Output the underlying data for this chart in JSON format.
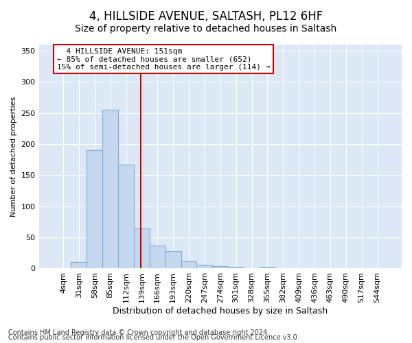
{
  "title": "4, HILLSIDE AVENUE, SALTASH, PL12 6HF",
  "subtitle": "Size of property relative to detached houses in Saltash",
  "xlabel": "Distribution of detached houses by size in Saltash",
  "ylabel": "Number of detached properties",
  "categories": [
    "4sqm",
    "31sqm",
    "58sqm",
    "85sqm",
    "112sqm",
    "139sqm",
    "166sqm",
    "193sqm",
    "220sqm",
    "247sqm",
    "274sqm",
    "301sqm",
    "328sqm",
    "355sqm",
    "382sqm",
    "409sqm",
    "436sqm",
    "463sqm",
    "490sqm",
    "517sqm",
    "544sqm"
  ],
  "values": [
    1,
    10,
    190,
    255,
    167,
    65,
    37,
    28,
    11,
    6,
    4,
    3,
    0,
    3,
    0,
    0,
    1,
    0,
    0,
    0,
    1
  ],
  "bar_color": "#c5d8f0",
  "bar_edge_color": "#7bafd4",
  "vline_color": "#cc0000",
  "vline_pos": 5.44,
  "annotation_title": "4 HILLSIDE AVENUE: 151sqm",
  "annotation_line1": "← 85% of detached houses are smaller (652)",
  "annotation_line2": "15% of semi-detached houses are larger (114) →",
  "annotation_box_color": "#ffffff",
  "annotation_box_edge_color": "#cc0000",
  "ylim": [
    0,
    360
  ],
  "yticks": [
    0,
    50,
    100,
    150,
    200,
    250,
    300,
    350
  ],
  "background_color": "#ffffff",
  "plot_bg_color": "#dce8f5",
  "grid_color": "#ffffff",
  "footer1": "Contains HM Land Registry data © Crown copyright and database right 2024.",
  "footer2": "Contains public sector information licensed under the Open Government Licence v3.0.",
  "title_fontsize": 12,
  "xlabel_fontsize": 9,
  "ylabel_fontsize": 8,
  "tick_fontsize": 8,
  "footer_fontsize": 7,
  "annot_fontsize": 8
}
